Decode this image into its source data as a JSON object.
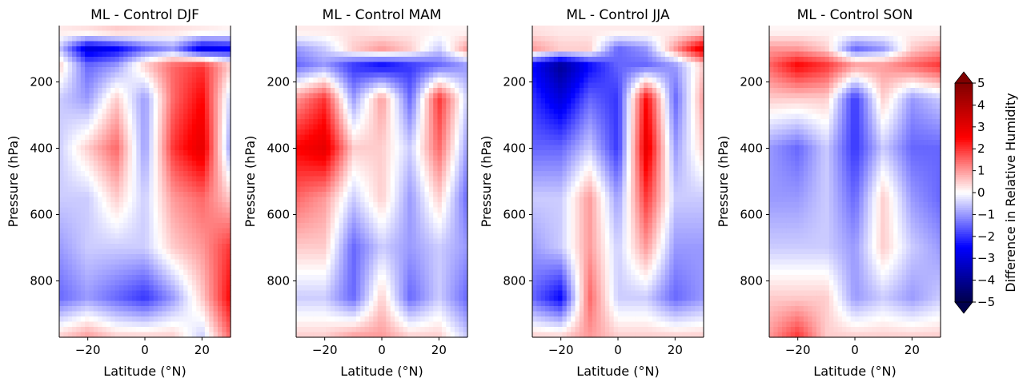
{
  "chart_data": [
    {
      "type": "heatmap",
      "title": "ML - Control DJF",
      "xlabel": "Latitude ($^\\circ$N)",
      "xlabel_display": "Latitude (°N)",
      "ylabel": "Pressure (hPa)",
      "xlim": [
        -30,
        30
      ],
      "ylim": [
        970,
        30
      ],
      "xticks": [
        "−20",
        "0",
        "20"
      ],
      "yticks": [
        "200",
        "400",
        "600",
        "800"
      ],
      "x": [
        -30,
        -20,
        -10,
        0,
        10,
        20,
        30
      ],
      "y": [
        50,
        100,
        150,
        250,
        400,
        550,
        700,
        850,
        970
      ],
      "z": [
        [
          0.2,
          0.3,
          0.5,
          0.4,
          0.3,
          0.2,
          0.1
        ],
        [
          -0.5,
          -3.0,
          -2.5,
          -1.5,
          -1.0,
          -2.8,
          -2.5
        ],
        [
          0.5,
          -1.5,
          -1.0,
          0.5,
          1.5,
          2.0,
          0.5
        ],
        [
          -0.5,
          -1.0,
          0.5,
          -1.0,
          1.5,
          2.5,
          -0.5
        ],
        [
          -0.5,
          0.5,
          1.5,
          -1.0,
          2.0,
          3.0,
          -1.0
        ],
        [
          -0.5,
          -0.5,
          0.5,
          -0.5,
          1.0,
          1.5,
          0.5
        ],
        [
          -1.0,
          -0.5,
          -0.5,
          -0.5,
          0.5,
          1.0,
          2.0
        ],
        [
          -1.5,
          -1.0,
          -1.5,
          -2.0,
          -1.0,
          0.5,
          2.5
        ],
        [
          0.5,
          1.0,
          0.5,
          0.5,
          0.5,
          -0.5,
          1.5
        ]
      ]
    },
    {
      "type": "heatmap",
      "title": "ML - Control MAM",
      "xlabel": "Latitude ($^\\circ$N)",
      "xlabel_display": "Latitude (°N)",
      "ylabel": "Pressure (hPa)",
      "xlim": [
        -30,
        30
      ],
      "ylim": [
        970,
        30
      ],
      "xticks": [
        "−20",
        "0",
        "20"
      ],
      "yticks": [
        "200",
        "400",
        "600",
        "800"
      ],
      "x": [
        -30,
        -20,
        -10,
        0,
        10,
        20,
        30
      ],
      "y": [
        50,
        100,
        150,
        250,
        400,
        550,
        700,
        850,
        970
      ],
      "z": [
        [
          0.2,
          0.2,
          0.3,
          0.2,
          0.2,
          0.1,
          0.1
        ],
        [
          -1.0,
          -0.5,
          0.5,
          1.0,
          0.5,
          -0.5,
          1.0
        ],
        [
          -1.5,
          -1.0,
          -2.0,
          -2.5,
          -2.0,
          -1.5,
          -1.0
        ],
        [
          1.0,
          2.0,
          -1.0,
          1.0,
          -1.5,
          2.0,
          -0.5
        ],
        [
          2.5,
          3.0,
          0.5,
          0.5,
          -0.5,
          1.5,
          -1.0
        ],
        [
          1.5,
          1.0,
          -0.5,
          0.5,
          -1.0,
          0.5,
          -1.5
        ],
        [
          0.5,
          0.5,
          -1.5,
          -0.5,
          -1.0,
          -0.5,
          -1.0
        ],
        [
          -0.5,
          -0.5,
          -1.5,
          0.5,
          -1.5,
          -0.5,
          -1.5
        ],
        [
          0.5,
          0.5,
          1.0,
          1.0,
          0.5,
          0.5,
          -0.5
        ]
      ]
    },
    {
      "type": "heatmap",
      "title": "ML - Control JJA",
      "xlabel": "Latitude ($^\\circ$N)",
      "xlabel_display": "Latitude (°N)",
      "ylabel": "Pressure (hPa)",
      "xlim": [
        -30,
        30
      ],
      "ylim": [
        970,
        30
      ],
      "xticks": [
        "−20",
        "0",
        "20"
      ],
      "yticks": [
        "200",
        "400",
        "600",
        "800"
      ],
      "x": [
        -30,
        -20,
        -10,
        0,
        10,
        20,
        30
      ],
      "y": [
        50,
        100,
        150,
        250,
        400,
        550,
        700,
        850,
        970
      ],
      "z": [
        [
          0.3,
          0.2,
          0.2,
          0.2,
          0.2,
          0.2,
          0.5
        ],
        [
          1.0,
          0.5,
          0.5,
          -1.5,
          -1.0,
          1.0,
          3.0
        ],
        [
          -2.5,
          -4.0,
          -2.5,
          -1.5,
          -1.5,
          -1.0,
          0.5
        ],
        [
          -2.0,
          -3.0,
          -1.5,
          -2.0,
          2.5,
          -1.5,
          1.0
        ],
        [
          -1.5,
          -1.5,
          -0.5,
          -2.0,
          3.0,
          -1.0,
          0.5
        ],
        [
          -0.5,
          -0.5,
          1.0,
          -1.0,
          2.0,
          -0.5,
          -0.5
        ],
        [
          -1.0,
          -0.5,
          1.0,
          -0.5,
          1.0,
          -1.0,
          -1.0
        ],
        [
          -1.5,
          -2.5,
          1.5,
          -0.5,
          -0.5,
          -1.5,
          -1.0
        ],
        [
          0.5,
          0.5,
          1.0,
          0.5,
          0.5,
          0.5,
          0.5
        ]
      ]
    },
    {
      "type": "heatmap",
      "title": "ML - Control SON",
      "xlabel": "Latitude ($^\\circ$N)",
      "xlabel_display": "Latitude (°N)",
      "ylabel": "Pressure (hPa)",
      "xlim": [
        -30,
        30
      ],
      "ylim": [
        970,
        30
      ],
      "xticks": [
        "−20",
        "0",
        "20"
      ],
      "yticks": [
        "200",
        "400",
        "600",
        "800"
      ],
      "x": [
        -30,
        -20,
        -10,
        0,
        10,
        20,
        30
      ],
      "y": [
        50,
        100,
        150,
        250,
        400,
        550,
        700,
        850,
        970
      ],
      "z": [
        [
          0.1,
          0.1,
          0.1,
          0.1,
          0.1,
          0.1,
          0.1
        ],
        [
          1.0,
          1.0,
          0.5,
          -1.5,
          -1.0,
          0.5,
          1.0
        ],
        [
          1.5,
          2.5,
          2.0,
          1.0,
          1.0,
          1.5,
          2.0
        ],
        [
          0.5,
          0.5,
          0.5,
          -2.0,
          0.5,
          -1.0,
          -0.5
        ],
        [
          -1.0,
          -1.5,
          -0.5,
          -2.0,
          -0.5,
          -1.5,
          -1.5
        ],
        [
          -1.0,
          -1.0,
          -0.5,
          -1.5,
          0.5,
          -1.0,
          -1.5
        ],
        [
          -0.5,
          -0.5,
          -0.5,
          -1.0,
          0.5,
          -0.5,
          -1.0
        ],
        [
          0.5,
          0.5,
          0.5,
          -1.0,
          -0.5,
          -1.0,
          -0.5
        ],
        [
          1.0,
          2.0,
          0.5,
          0.5,
          0.5,
          0.5,
          0.5
        ]
      ]
    }
  ],
  "colorbar": {
    "label": "Difference in Relative Humidity",
    "min": -5,
    "max": 5,
    "ticks": [
      "5",
      "4",
      "3",
      "2",
      "1",
      "0",
      "−1",
      "−2",
      "−3",
      "−4",
      "−5"
    ],
    "extend": "both",
    "colormap": "seismic",
    "colors": [
      "#00004c",
      "#0000ff",
      "#ffffff",
      "#ff0000",
      "#800000"
    ]
  }
}
